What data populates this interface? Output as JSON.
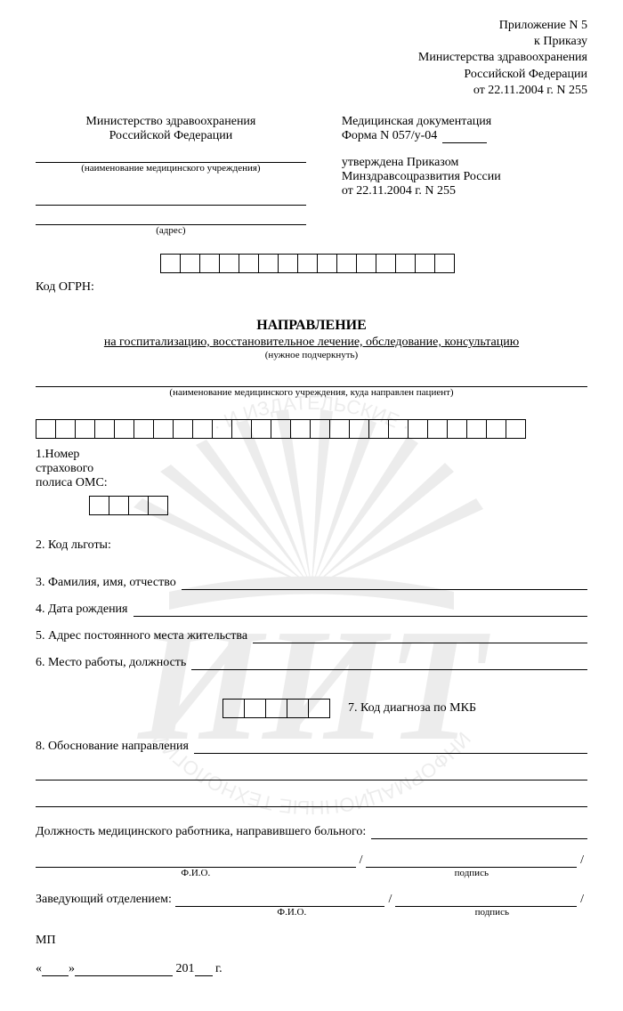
{
  "appendix": {
    "l1": "Приложение N 5",
    "l2": "к Приказу",
    "l3": "Министерства здравоохранения",
    "l4": "Российской Федерации",
    "l5": "от 22.11.2004 г. N 255"
  },
  "headerLeft": {
    "l1": "Министерство здравоохранения",
    "l2": "Российской Федерации",
    "capInst": "(наименование медицинского учреждения)",
    "capAddr": "(адрес)"
  },
  "headerRight": {
    "l1": "Медицинская документация",
    "l2pre": "Форма N 057/у-04",
    "l3": "утверждена Приказом",
    "l4": "Минздравсоцразвития России",
    "l5": "от 22.11.2004 г. N 255"
  },
  "ogrnLabel": "Код ОГРН:",
  "ogrnCells": 15,
  "title": "НАПРАВЛЕНИЕ",
  "subtitle": "на госпитализацию, восстановительное лечение, обследование, консультацию",
  "subtitleCap": "(нужное подчеркнуть)",
  "destCap": "(наименование медицинского учреждения, куда направлен пациент)",
  "field1": {
    "l1": "1.Номер",
    "l2": "страхового",
    "l3": "полиса ОМС:",
    "cellsA": 25,
    "cellsB": 4
  },
  "field2": "2. Код льготы:",
  "field3": "3. Фамилия, имя, отчество",
  "field4": "4. Дата рождения",
  "field5": "5. Адрес постоянного места жительства",
  "field6": "6. Место работы, должность",
  "field7": {
    "label": "7. Код диагноза по МКБ",
    "cells": 5
  },
  "field8": "8. Обоснование направления",
  "positionLabel": "Должность медицинского работника, направившего больного:",
  "fioCap": "Ф.И.О.",
  "signCap": "подпись",
  "headLabel": "Заведующий отделением:",
  "mp": "МП",
  "dateYear": "201",
  "dateSuffix": "г.",
  "watermark": {
    "letters": "ИИТ",
    "color": "#888888"
  }
}
